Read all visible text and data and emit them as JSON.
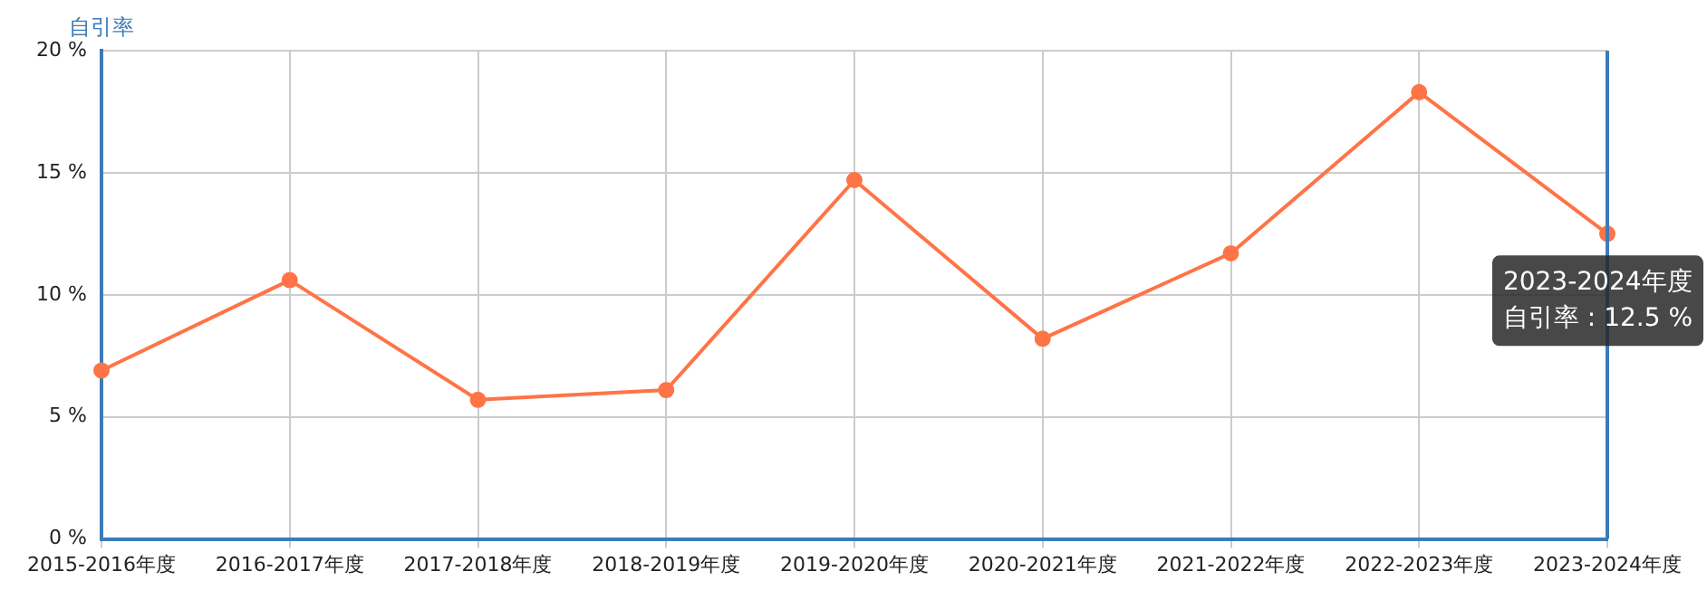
{
  "chart_data": {
    "type": "line",
    "ylabel": "自引率",
    "categories": [
      "2015-2016年度",
      "2016-2017年度",
      "2017-2018年度",
      "2018-2019年度",
      "2019-2020年度",
      "2020-2021年度",
      "2021-2022年度",
      "2022-2023年度",
      "2023-2024年度"
    ],
    "series": [
      {
        "color": "#ff7446",
        "values": [
          6.9,
          10.6,
          5.7,
          6.1,
          14.7,
          8.2,
          11.7,
          18.3,
          12.5
        ]
      }
    ],
    "ylim": [
      0,
      20
    ],
    "yticks": [
      {
        "value": 0,
        "label": "0 %"
      },
      {
        "value": 5,
        "label": "5 %"
      },
      {
        "value": 10,
        "label": "10 %"
      },
      {
        "value": 15,
        "label": "15 %"
      },
      {
        "value": 20,
        "label": "20 %"
      }
    ],
    "annotations": [
      {
        "text": "2023-2024年度",
        "x": "2023-2024年度",
        "y": 12.5
      },
      {
        "text": "自引率 : 12.5 %",
        "x": "2023-2024年度",
        "y": 12.5
      }
    ],
    "grid": true,
    "legend": false,
    "marker": "circle",
    "line_style": "solid"
  }
}
